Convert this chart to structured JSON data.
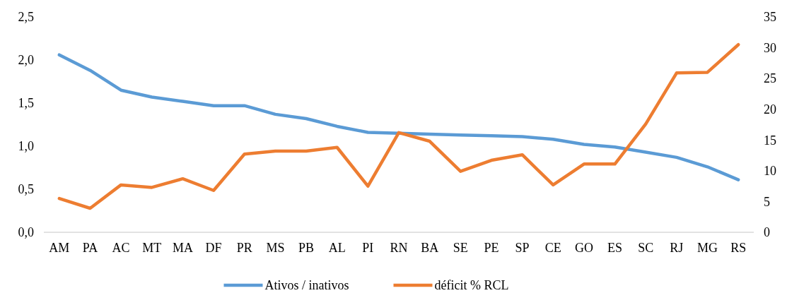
{
  "chart_data": {
    "type": "line",
    "categories": [
      "AM",
      "PA",
      "AC",
      "MT",
      "MA",
      "DF",
      "PR",
      "MS",
      "PB",
      "AL",
      "PI",
      "RN",
      "BA",
      "SE",
      "PE",
      "SP",
      "CE",
      "GO",
      "ES",
      "SC",
      "RJ",
      "MG",
      "RS"
    ],
    "series": [
      {
        "name": "Ativos / inativos",
        "color": "#5b9bd5",
        "values": [
          2.06,
          1.88,
          1.65,
          1.57,
          1.52,
          1.47,
          1.47,
          1.37,
          1.32,
          1.23,
          1.16,
          1.15,
          1.14,
          1.13,
          1.12,
          1.11,
          1.08,
          1.02,
          0.99,
          0.93,
          0.87,
          0.76,
          0.61
        ]
      },
      {
        "name": "déficit % RCL",
        "color": "#ed7d31",
        "axis": "y2",
        "values": [
          5.5,
          3.9,
          7.7,
          7.3,
          8.7,
          6.8,
          12.7,
          13.2,
          13.2,
          13.8,
          7.5,
          16.2,
          14.8,
          9.9,
          11.7,
          12.6,
          7.7,
          11.1,
          11.1,
          17.6,
          25.9,
          26.0,
          30.5
        ]
      }
    ],
    "ylim": [
      0,
      2.5
    ],
    "yticks": [
      {
        "value": 0,
        "label": "0,0"
      },
      {
        "value": 0.5,
        "label": "0,5"
      },
      {
        "value": 1,
        "label": "1,0"
      },
      {
        "value": 1.5,
        "label": "1,5"
      },
      {
        "value": 2,
        "label": "2,0"
      },
      {
        "value": 2.5,
        "label": "2,5"
      }
    ],
    "y2lim": [
      0,
      35
    ],
    "y2ticks": [
      0,
      5,
      10,
      15,
      20,
      25,
      30,
      35
    ],
    "grid": false,
    "legend": "bottom",
    "marker": "none",
    "line_style": "solid"
  }
}
